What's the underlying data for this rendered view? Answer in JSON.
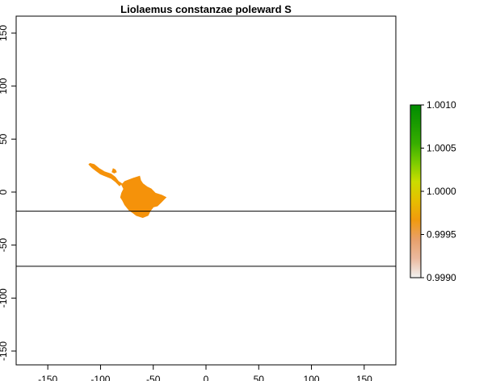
{
  "title": "Liolaemus constanzae poleward S",
  "map": {
    "type": "raster",
    "x_ticks": [
      "-150",
      "-100",
      "-50",
      "0",
      "50",
      "100",
      "150"
    ],
    "x_tick_values": [
      -150,
      -100,
      -50,
      0,
      50,
      100,
      150
    ],
    "y_ticks": [
      "-150",
      "-100",
      "-50",
      "0",
      "50",
      "100",
      "150"
    ],
    "y_tick_values": [
      -150,
      -100,
      -50,
      0,
      50,
      100,
      150
    ],
    "xlim": [
      -180,
      180
    ],
    "ylim": [
      -163,
      166
    ],
    "h_lines": [
      -18,
      -70
    ],
    "range_color": "#F5920A",
    "range_polygons": [
      [
        [
          -63,
          15
        ],
        [
          -69,
          13
        ],
        [
          -77,
          10
        ],
        [
          -80,
          7
        ],
        [
          -78,
          3
        ],
        [
          -80,
          -1
        ],
        [
          -81,
          -5
        ],
        [
          -79,
          -8
        ],
        [
          -77,
          -12
        ],
        [
          -73,
          -17
        ],
        [
          -70,
          -19
        ],
        [
          -66,
          -22
        ],
        [
          -60,
          -24
        ],
        [
          -55,
          -22
        ],
        [
          -53,
          -18
        ],
        [
          -50,
          -14
        ],
        [
          -46,
          -13
        ],
        [
          -43,
          -10
        ],
        [
          -40,
          -7
        ],
        [
          -38,
          -5
        ],
        [
          -42,
          -3
        ],
        [
          -48,
          -1
        ],
        [
          -52,
          3
        ],
        [
          -56,
          5
        ],
        [
          -60,
          8
        ],
        [
          -62,
          11
        ]
      ],
      [
        [
          -110,
          27
        ],
        [
          -106,
          26
        ],
        [
          -101,
          22
        ],
        [
          -96,
          19
        ],
        [
          -90,
          17
        ],
        [
          -86,
          14
        ],
        [
          -83,
          10
        ],
        [
          -80,
          8
        ],
        [
          -82,
          6
        ],
        [
          -86,
          10
        ],
        [
          -90,
          13
        ],
        [
          -95,
          15
        ],
        [
          -100,
          17
        ],
        [
          -104,
          20
        ],
        [
          -108,
          23
        ],
        [
          -111,
          26
        ]
      ],
      [
        [
          -88,
          22
        ],
        [
          -86,
          21
        ],
        [
          -85,
          19
        ],
        [
          -87,
          18
        ],
        [
          -89,
          19
        ]
      ],
      [
        [
          -78,
          8
        ],
        [
          -74,
          8
        ],
        [
          -75,
          6
        ],
        [
          -78,
          6
        ]
      ]
    ]
  },
  "legend": {
    "labels": [
      "1.0010",
      "1.0005",
      "1.0000",
      "0.9995",
      "0.9990"
    ],
    "values": [
      1.001,
      1.0005,
      1.0,
      0.9995,
      0.999
    ],
    "min": 0.999,
    "max": 1.001,
    "colors": [
      "#F2F2F2",
      "#EBB99E",
      "#E8A06A",
      "#F19A0E",
      "#E6BE00",
      "#CBDD00",
      "#7ACB00",
      "#37AE00",
      "#1A9B00",
      "#008C00"
    ]
  }
}
